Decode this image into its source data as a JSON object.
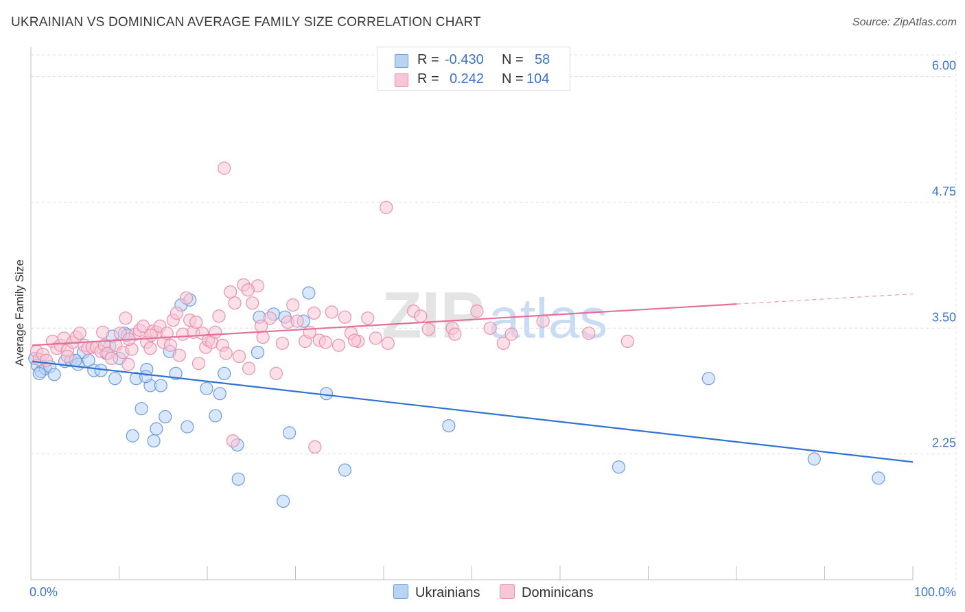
{
  "title": "UKRAINIAN VS DOMINICAN AVERAGE FAMILY SIZE CORRELATION CHART",
  "source": "Source: ZipAtlas.com",
  "colors": {
    "ukrainian_fill": "#b9d3f5",
    "ukrainian_stroke": "#6b9be0",
    "ukrainian_line": "#2f72d1",
    "dominican_fill": "#f8c6d6",
    "dominican_stroke": "#eb8fae",
    "dominican_line": "#e4709a",
    "axis_label": "#3b74c8",
    "grid": "#dcdcdc"
  },
  "legend": {
    "rows": [
      {
        "r_label": "R =",
        "r_value": "-0.430",
        "n_label": "N =",
        "n_value": "58"
      },
      {
        "r_label": "R =",
        "r_value": "0.242",
        "n_label": "N =",
        "n_value": "104"
      }
    ]
  },
  "bottom_legend": {
    "ukrainians": "Ukrainians",
    "dominicans": "Dominicans"
  },
  "watermark": {
    "zip": "ZIP",
    "atlas": "atlas"
  },
  "chart_data": {
    "type": "scatter",
    "title": "UKRAINIAN VS DOMINICAN AVERAGE FAMILY SIZE CORRELATION CHART",
    "xlabel": "",
    "ylabel": "Average Family Size",
    "xlim": [
      0,
      100
    ],
    "ylim": [
      1.0,
      6.25
    ],
    "x_tick_labels": [
      "0.0%",
      "100.0%"
    ],
    "y_ticks": [
      2.25,
      3.5,
      4.75,
      6.0
    ],
    "y_tick_labels": [
      "2.25",
      "3.50",
      "4.75",
      "6.00"
    ],
    "grid": true,
    "series": [
      {
        "name": "Ukrainians",
        "R": -0.43,
        "N": 58,
        "trend": {
          "x0": 0,
          "y0": 3.17,
          "x1": 100,
          "y1": 2.17
        },
        "points": [
          [
            0.3,
            3.2
          ],
          [
            0.6,
            3.13
          ],
          [
            1.0,
            3.07
          ],
          [
            1.5,
            3.1
          ],
          [
            2.0,
            3.12
          ],
          [
            2.5,
            3.04
          ],
          [
            3.7,
            3.17
          ],
          [
            4.4,
            3.18
          ],
          [
            5.2,
            3.14
          ],
          [
            5.8,
            3.26
          ],
          [
            6.4,
            3.18
          ],
          [
            7.0,
            3.08
          ],
          [
            7.8,
            3.08
          ],
          [
            8.4,
            3.25
          ],
          [
            8.8,
            3.32
          ],
          [
            9.1,
            3.42
          ],
          [
            9.4,
            3.0
          ],
          [
            9.9,
            3.2
          ],
          [
            10.5,
            3.45
          ],
          [
            10.8,
            3.43
          ],
          [
            11.4,
            2.43
          ],
          [
            11.8,
            3.0
          ],
          [
            12.4,
            2.7
          ],
          [
            13.0,
            3.09
          ],
          [
            13.4,
            2.93
          ],
          [
            13.8,
            2.38
          ],
          [
            14.1,
            2.5
          ],
          [
            14.6,
            2.93
          ],
          [
            15.1,
            2.62
          ],
          [
            15.6,
            3.27
          ],
          [
            16.3,
            3.05
          ],
          [
            16.9,
            3.73
          ],
          [
            17.6,
            2.52
          ],
          [
            17.9,
            3.78
          ],
          [
            19.8,
            2.9
          ],
          [
            20.8,
            2.63
          ],
          [
            21.3,
            2.85
          ],
          [
            21.8,
            3.05
          ],
          [
            23.3,
            2.34
          ],
          [
            23.4,
            2.0
          ],
          [
            25.6,
            3.26
          ],
          [
            25.8,
            3.61
          ],
          [
            27.4,
            3.64
          ],
          [
            28.5,
            1.78
          ],
          [
            28.7,
            3.61
          ],
          [
            29.2,
            2.46
          ],
          [
            30.8,
            3.57
          ],
          [
            31.4,
            3.85
          ],
          [
            33.4,
            2.85
          ],
          [
            35.5,
            2.09
          ],
          [
            47.3,
            2.53
          ],
          [
            66.6,
            2.12
          ],
          [
            76.8,
            3.0
          ],
          [
            88.8,
            2.2
          ],
          [
            96.1,
            2.01
          ],
          [
            0.8,
            3.05
          ],
          [
            4.9,
            3.18
          ],
          [
            12.9,
            3.02
          ]
        ]
      },
      {
        "name": "Dominicans",
        "R": 0.242,
        "N": 104,
        "trend": {
          "x0": 0,
          "y0": 3.33,
          "x1": 80,
          "y1": 3.74,
          "dash_x1": 100,
          "dash_y1": 3.84
        },
        "points": [
          [
            0.5,
            3.27
          ],
          [
            0.8,
            3.19
          ],
          [
            1.2,
            3.24
          ],
          [
            1.6,
            3.18
          ],
          [
            2.3,
            3.37
          ],
          [
            2.8,
            3.3
          ],
          [
            3.2,
            3.33
          ],
          [
            3.6,
            3.4
          ],
          [
            4.0,
            3.28
          ],
          [
            4.6,
            3.36
          ],
          [
            5.0,
            3.41
          ],
          [
            5.4,
            3.45
          ],
          [
            5.9,
            3.33
          ],
          [
            6.3,
            3.3
          ],
          [
            6.8,
            3.31
          ],
          [
            7.3,
            3.31
          ],
          [
            7.8,
            3.27
          ],
          [
            8.2,
            3.33
          ],
          [
            8.6,
            3.25
          ],
          [
            9.0,
            3.2
          ],
          [
            9.5,
            3.33
          ],
          [
            10.0,
            3.45
          ],
          [
            10.3,
            3.26
          ],
          [
            10.6,
            3.6
          ],
          [
            10.9,
            3.14
          ],
          [
            11.3,
            3.29
          ],
          [
            11.7,
            3.44
          ],
          [
            12.2,
            3.48
          ],
          [
            12.6,
            3.52
          ],
          [
            13.0,
            3.36
          ],
          [
            13.4,
            3.3
          ],
          [
            13.7,
            3.47
          ],
          [
            14.1,
            3.46
          ],
          [
            14.5,
            3.52
          ],
          [
            14.9,
            3.36
          ],
          [
            15.3,
            3.45
          ],
          [
            15.7,
            3.33
          ],
          [
            16.0,
            3.58
          ],
          [
            16.4,
            3.65
          ],
          [
            16.7,
            3.23
          ],
          [
            17.1,
            3.44
          ],
          [
            17.5,
            3.8
          ],
          [
            17.9,
            3.58
          ],
          [
            18.3,
            3.46
          ],
          [
            18.6,
            3.56
          ],
          [
            18.9,
            3.15
          ],
          [
            19.3,
            3.45
          ],
          [
            19.7,
            3.31
          ],
          [
            20.0,
            3.38
          ],
          [
            20.4,
            3.36
          ],
          [
            20.8,
            3.46
          ],
          [
            21.2,
            3.62
          ],
          [
            21.6,
            3.33
          ],
          [
            22.0,
            3.25
          ],
          [
            22.5,
            3.86
          ],
          [
            23.0,
            3.75
          ],
          [
            23.5,
            3.22
          ],
          [
            24.0,
            3.93
          ],
          [
            24.6,
            3.1
          ],
          [
            25.0,
            3.75
          ],
          [
            25.6,
            3.92
          ],
          [
            26.2,
            3.41
          ],
          [
            27.0,
            3.6
          ],
          [
            27.7,
            3.05
          ],
          [
            28.4,
            3.35
          ],
          [
            29.0,
            3.56
          ],
          [
            29.6,
            3.73
          ],
          [
            30.1,
            3.57
          ],
          [
            31.0,
            3.37
          ],
          [
            31.5,
            3.46
          ],
          [
            32.0,
            3.65
          ],
          [
            32.6,
            3.38
          ],
          [
            33.3,
            3.36
          ],
          [
            34.0,
            3.66
          ],
          [
            34.8,
            3.33
          ],
          [
            35.5,
            3.61
          ],
          [
            36.2,
            3.45
          ],
          [
            37.0,
            3.37
          ],
          [
            38.1,
            3.6
          ],
          [
            39.0,
            3.4
          ],
          [
            40.4,
            3.35
          ],
          [
            43.3,
            3.67
          ],
          [
            44.1,
            3.62
          ],
          [
            45.0,
            3.49
          ],
          [
            47.7,
            3.5
          ],
          [
            50.5,
            3.67
          ],
          [
            52.0,
            3.5
          ],
          [
            53.5,
            3.35
          ],
          [
            54.4,
            3.44
          ],
          [
            67.6,
            3.37
          ],
          [
            21.8,
            5.09
          ],
          [
            40.2,
            4.7
          ],
          [
            22.8,
            2.38
          ],
          [
            32.1,
            2.32
          ],
          [
            13.5,
            3.43
          ],
          [
            24.5,
            3.88
          ],
          [
            4.0,
            3.22
          ],
          [
            8.0,
            3.46
          ],
          [
            11.0,
            3.39
          ],
          [
            26.0,
            3.52
          ],
          [
            36.6,
            3.38
          ],
          [
            48.0,
            3.44
          ],
          [
            58.0,
            3.57
          ],
          [
            63.2,
            3.45
          ]
        ]
      }
    ]
  }
}
